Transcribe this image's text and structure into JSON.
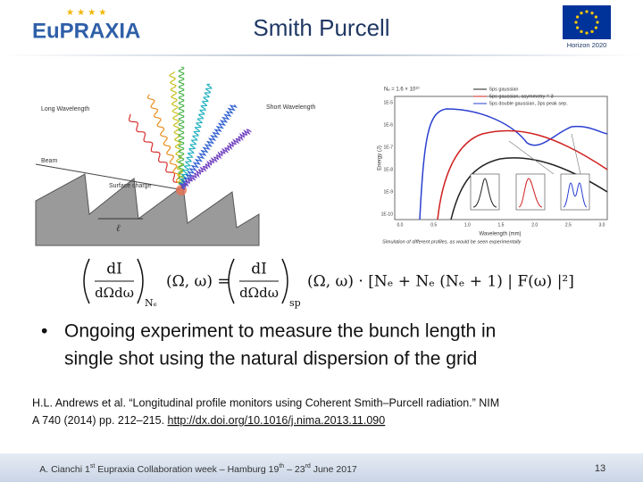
{
  "header": {
    "title": "Smith Purcell",
    "logo": "EuPRAXIA",
    "eu_label": "Horizon 2020"
  },
  "figure": {
    "diagram": {
      "long_wavelength": "Long Wavelength",
      "short_wavelength": "Short Wavelength",
      "beam": "Beam",
      "surface_charge": "Surface charge",
      "period": "ℓ"
    },
    "plot": {
      "annotation": "Nₑ = 1.6 × 10¹⁰",
      "legend": [
        "5ps gaussian",
        "5ps gaussian, asymmetry = 3",
        "5ps double gaussian, 3ps peak sep."
      ],
      "x_label": "Wavelength (mm)",
      "y_label": "Energy (J)",
      "xticks": [
        "0.0",
        "0.5",
        "1.0",
        "1.5",
        "2.0",
        "2.5",
        "3.0"
      ],
      "yticks": [
        "1E-5",
        "1E-6",
        "1E-7",
        "1E-8",
        "1E-9",
        "1E-10"
      ],
      "caption": "Simulation of different profiles, as would be seen experimentally"
    }
  },
  "equation": {
    "numerator": "dI",
    "denominator": "dΩdω",
    "left_subscript": "Nₑ",
    "middle": "(Ω, ω) =",
    "right_subscript": "sp",
    "rhs": "(Ω, ω) · [Nₑ + Nₑ (Nₑ + 1) | F(ω) |²]"
  },
  "bullet": {
    "lines": [
      "Ongoing experiment to measure the bunch length in",
      "single shot using the natural dispersion of the grid"
    ]
  },
  "reference": {
    "line1": "H.L. Andrews et al. “Longitudinal profile monitors using Coherent Smith–Purcell radiation.” NIM",
    "line2": "A 740 (2014) pp. 212–215. ",
    "link": "http://dx.doi.org/10.1016/j.nima.2013.11.090"
  },
  "footer": {
    "parts": [
      "A. Cianchi 1",
      "st",
      " Eupraxia Collaboration week – Hamburg 19",
      "th",
      " – 23",
      "rd",
      " June 2017"
    ],
    "page": "13"
  }
}
